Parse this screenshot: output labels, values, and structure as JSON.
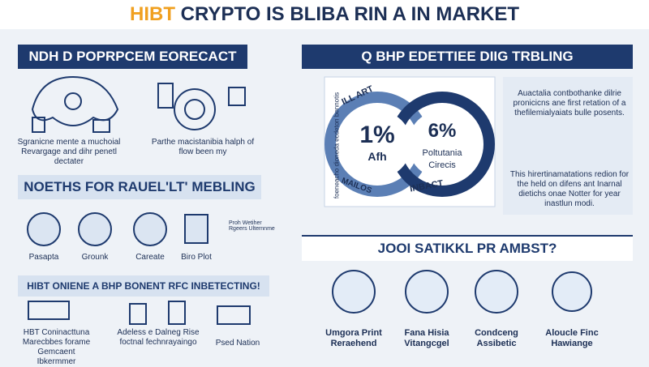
{
  "header": {
    "title_highlight": "HIBT",
    "title": "CRYPTO IS BLIBA RIN A IN MARKET"
  },
  "left_top": {
    "heading": "NDH D POPRPCEM EORECACT",
    "captions": [
      "Sgranicne mente a muchoial Revargage and dihr penetl dectater",
      "Parthe macistanibia halph of flow been my"
    ]
  },
  "left_mid": {
    "heading": "NOETHS FOR RAUEL'LT' MEBLING",
    "items": [
      "Pasapta",
      "Grounk",
      "Careate",
      "Biro Plot"
    ],
    "note": "Proh Wetiher Rgeers Ulternnme"
  },
  "left_bottom": {
    "heading": "HIBT ONIENE A BHP BONENT RFC INBETECTING!",
    "items": [
      "HBT Coninacttuna Marecbbes forame Gemcaent Ibkermmer",
      "Adeless e Dalneg Rise foctnal fechnrayaingo",
      "Psed Nation"
    ]
  },
  "right_top": {
    "heading": "Q BHP EDETTIEE DIIG TRBLING",
    "side_text": "foeneacho dioneda ecdeton bennotis",
    "ring_labels": [
      "ILL ART",
      "MAILOS",
      "INBACT"
    ],
    "left_value": "1%",
    "left_caption": "Afh",
    "right_value": "6%",
    "right_caption": "Poltutania Cirecis",
    "notes": [
      "Auactalia contbothanke dilrie pronicicns ane first retation of a thefilemialyaiats bulle posents.",
      "This hirertinamatations redion for the held on difens ant Inarnal dietichs onae Notter for year inastlun modi."
    ]
  },
  "right_bottom": {
    "heading": "JOOI SATIKKL PR AMBST?",
    "items": [
      "Umgora Print Reraehend",
      "Fana Hisia Vitangcgel",
      "Condceng Assibetic",
      "Aloucle Finc Hawiange"
    ]
  }
}
